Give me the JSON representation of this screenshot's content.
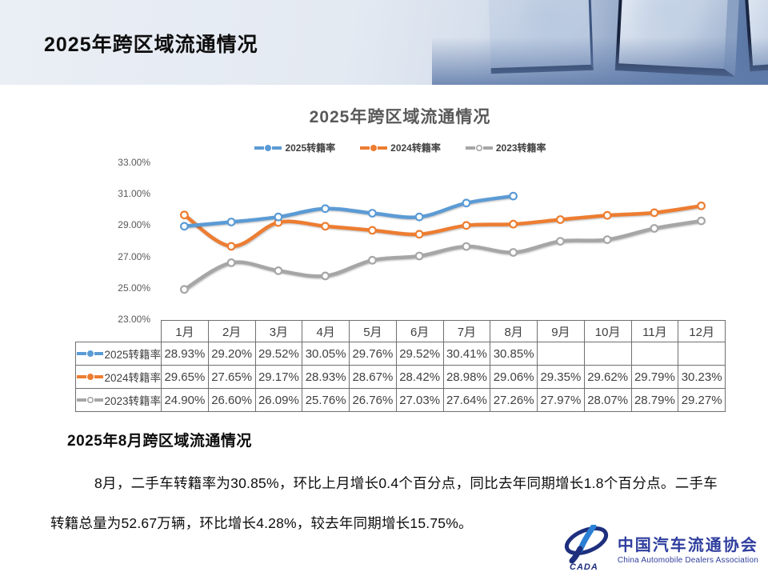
{
  "page": {
    "title": "2025年跨区域流通情况"
  },
  "chart_data": {
    "type": "line",
    "title": "2025年跨区域流通情况",
    "categories": [
      "1月",
      "2月",
      "3月",
      "4月",
      "5月",
      "6月",
      "7月",
      "8月",
      "9月",
      "10月",
      "11月",
      "12月"
    ],
    "series": [
      {
        "name": "2025转籍率",
        "color": "#5B9BD5",
        "legend_marker": "solid",
        "values": [
          28.93,
          29.2,
          29.52,
          30.05,
          29.76,
          29.52,
          30.41,
          30.85,
          null,
          null,
          null,
          null
        ]
      },
      {
        "name": "2024转籍率",
        "color": "#ED7D31",
        "legend_marker": "solid",
        "values": [
          29.65,
          27.65,
          29.17,
          28.93,
          28.67,
          28.42,
          28.98,
          29.06,
          29.35,
          29.62,
          29.79,
          30.23
        ]
      },
      {
        "name": "2023转籍率",
        "color": "#A6A6A6",
        "legend_marker": "open",
        "values": [
          24.9,
          26.6,
          26.09,
          25.76,
          26.76,
          27.03,
          27.64,
          27.26,
          27.97,
          28.07,
          28.79,
          29.27
        ]
      }
    ],
    "ylim": [
      23,
      33
    ],
    "y_ticks": [
      "33.00%",
      "31.00%",
      "29.00%",
      "27.00%",
      "25.00%",
      "23.00%"
    ],
    "grid": false,
    "legend_position": "top"
  },
  "table": {
    "months": [
      "1月",
      "2月",
      "3月",
      "4月",
      "5月",
      "6月",
      "7月",
      "8月",
      "9月",
      "10月",
      "11月",
      "12月"
    ],
    "rows": [
      {
        "label": "2025转籍率",
        "cells": [
          "28.93%",
          "29.20%",
          "29.52%",
          "30.05%",
          "29.76%",
          "29.52%",
          "30.41%",
          "30.85%",
          "",
          "",
          "",
          ""
        ]
      },
      {
        "label": "2024转籍率",
        "cells": [
          "29.65%",
          "27.65%",
          "29.17%",
          "28.93%",
          "28.67%",
          "28.42%",
          "28.98%",
          "29.06%",
          "29.35%",
          "29.62%",
          "29.79%",
          "30.23%"
        ]
      },
      {
        "label": "2023转籍率",
        "cells": [
          "24.90%",
          "26.60%",
          "26.09%",
          "25.76%",
          "26.76%",
          "27.03%",
          "27.64%",
          "27.26%",
          "27.97%",
          "28.07%",
          "28.79%",
          "29.27%"
        ]
      }
    ]
  },
  "summary": {
    "heading": "2025年8月跨区域流通情况",
    "text": "8月，二手车转籍率为30.85%，环比上月增长0.4个百分点，同比去年同期增长1.8个百分点。二手车转籍总量为52.67万辆，环比增长4.28%，较去年同期增长15.75%。"
  },
  "logo": {
    "cn": "中国汽车流通协会",
    "en": "China Automobile Dealers Association",
    "badge": "CADA",
    "color": "#2F3E9E"
  }
}
